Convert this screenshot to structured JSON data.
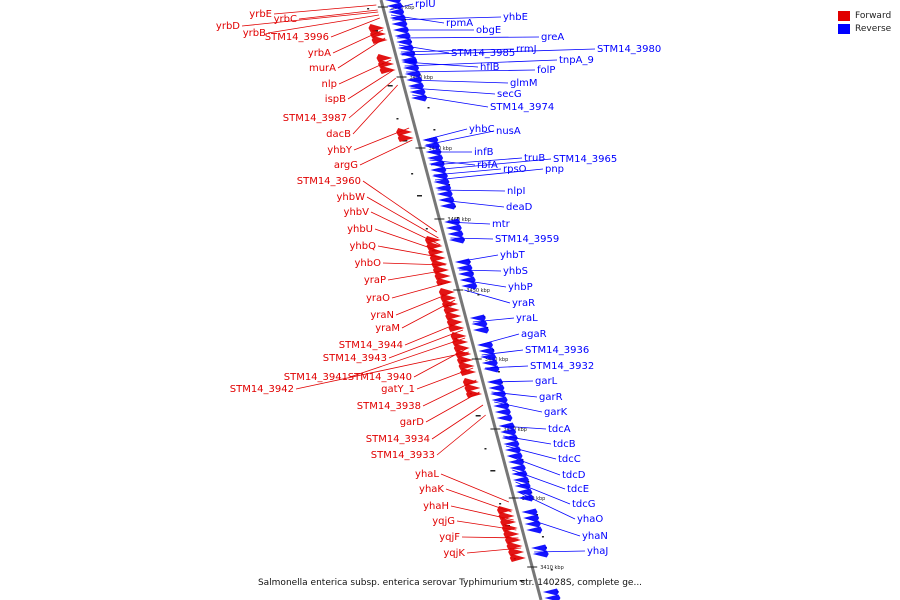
{
  "legend": {
    "forward_label": "Forward",
    "reverse_label": "Reverse",
    "forward_color": "#e00000",
    "reverse_color": "#0000ff"
  },
  "caption": "Salmonella enterica subsp. enterica serovar Typhimurium str. 14028S, complete ge...",
  "axis": {
    "line_color": "#777777",
    "ticks": [
      "3490 kbp",
      "3480 kbp",
      "3470 kbp",
      "3460 kbp",
      "3450 kbp",
      "3440 kbp",
      "3430 kbp",
      "3420 kbp",
      "3410 kbp"
    ]
  },
  "reverse_genes": [
    "rplU",
    "rpmA",
    "yhbE",
    "obgE",
    "greA",
    "STM14_3985",
    "rrmJ",
    "STM14_3980",
    "hflB",
    "tnpA_9",
    "folP",
    "glmM",
    "secG",
    "STM14_3974",
    "yhbC",
    "nusA",
    "infB",
    "rbfA",
    "truB",
    "STM14_3965",
    "rpsO",
    "pnp",
    "nlpI",
    "deaD",
    "mtr",
    "STM14_3959",
    "yhbT",
    "yhbS",
    "yhbP",
    "yraR",
    "yraL",
    "agaR",
    "STM14_3936",
    "STM14_3932",
    "garL",
    "garR",
    "garK",
    "tdcA",
    "tdcB",
    "tdcC",
    "tdcD",
    "tdcE",
    "tdcG",
    "yhaO",
    "yhaN",
    "yhaJ"
  ],
  "forward_genes": [
    "yrbE",
    "yrbC",
    "yrbD",
    "yrbB",
    "STM14_3996",
    "yrbA",
    "murA",
    "nlp",
    "ispB",
    "STM14_3987",
    "dacB",
    "yhbY",
    "argG",
    "STM14_3960",
    "yhbW",
    "yhbV",
    "yhbU",
    "yhbQ",
    "yhbO",
    "yraP",
    "yraO",
    "yraN",
    "yraM",
    "STM14_3944",
    "STM14_3943",
    "STM14_3941",
    "STM14_3940",
    "STM14_3942",
    "gatY_1",
    "STM14_3938",
    "garD",
    "STM14_3934",
    "STM14_3933",
    "yhaL",
    "yhaK",
    "yhaH",
    "yqjG",
    "yqjF",
    "yqjK"
  ]
}
